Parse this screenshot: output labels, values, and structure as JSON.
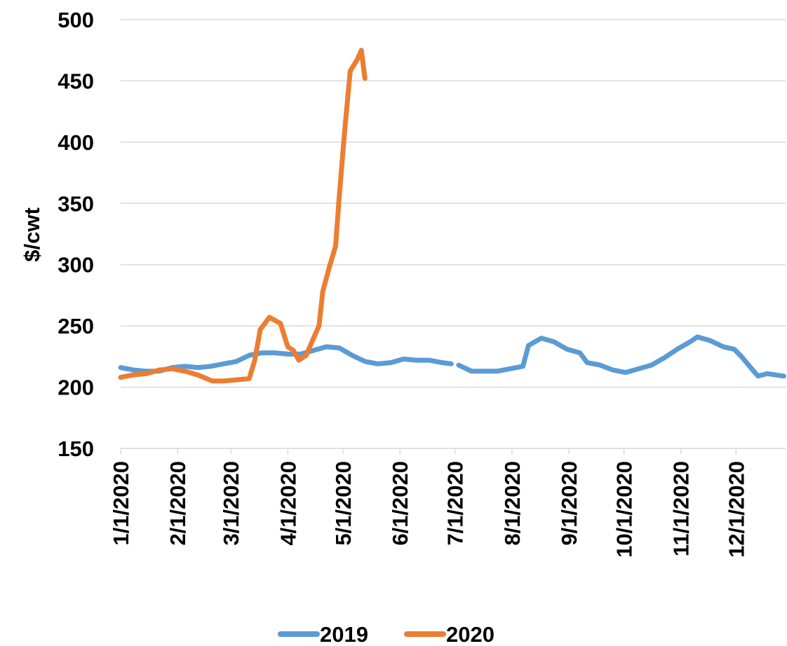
{
  "chart_data": {
    "type": "line",
    "y_label": "$/cwt",
    "xlim": [
      "1/1/2020",
      "12/28/2020"
    ],
    "xticks": [
      "1/1/2020",
      "2/1/2020",
      "3/1/2020",
      "4/1/2020",
      "5/1/2020",
      "6/1/2020",
      "7/1/2020",
      "8/1/2020",
      "9/1/2020",
      "10/1/2020",
      "11/1/2020",
      "12/1/2020"
    ],
    "ylim": [
      150,
      500
    ],
    "yticks": [
      150,
      200,
      250,
      300,
      350,
      400,
      450,
      500
    ],
    "grid": true,
    "legend": "bottom",
    "series": [
      {
        "name": "2019",
        "color": "#5b9bd5",
        "x": [
          "1/1/2020",
          "1/8/2020",
          "1/15/2020",
          "1/22/2020",
          "1/29/2020",
          "2/5/2020",
          "2/12/2020",
          "2/19/2020",
          "2/26/2020",
          "3/4/2020",
          "3/11/2020",
          "3/18/2020",
          "3/25/2020",
          "4/1/2020",
          "4/8/2020",
          "4/15/2020",
          "4/22/2020",
          "4/29/2020",
          "5/6/2020",
          "5/13/2020",
          "5/20/2020",
          "5/27/2020",
          "6/3/2020",
          "6/10/2020",
          "6/17/2020",
          "6/24/2020",
          "6/29/2020",
          "7/1/2020",
          "7/3/2020",
          "7/10/2020",
          "7/17/2020",
          "7/24/2020",
          "7/31/2020",
          "8/7/2020",
          "8/10/2020",
          "8/17/2020",
          "8/24/2020",
          "8/31/2020",
          "9/7/2020",
          "9/11/2020",
          "9/18/2020",
          "9/25/2020",
          "10/2/2020",
          "10/9/2020",
          "10/16/2020",
          "10/23/2020",
          "10/30/2020",
          "11/6/2020",
          "11/10/2020",
          "11/17/2020",
          "11/24/2020",
          "11/30/2020",
          "12/4/2020",
          "12/9/2020",
          "12/13/2020",
          "12/18/2020",
          "12/27/2020"
        ],
        "values": [
          216,
          214,
          213,
          213,
          216,
          217,
          216,
          217,
          219,
          221,
          226,
          228,
          228,
          227,
          227,
          230,
          233,
          232,
          226,
          221,
          219,
          220,
          223,
          222,
          222,
          220,
          219,
          null,
          218,
          213,
          213,
          213,
          215,
          217,
          234,
          240,
          237,
          231,
          228,
          220,
          218,
          214,
          212,
          215,
          218,
          224,
          231,
          237,
          241,
          238,
          233,
          231,
          225,
          216,
          209,
          211,
          209
        ]
      },
      {
        "name": "2020",
        "color": "#ed7d31",
        "x": [
          "1/1/2020",
          "1/8/2020",
          "1/15/2020",
          "1/22/2020",
          "1/29/2020",
          "2/5/2020",
          "2/12/2020",
          "2/20/2020",
          "2/26/2020",
          "3/4/2020",
          "3/11/2020",
          "3/14/2020",
          "3/17/2020",
          "3/22/2020",
          "3/28/2020",
          "4/1/2020",
          "4/4/2020",
          "4/7/2020",
          "4/11/2020",
          "4/15/2020",
          "4/18/2020",
          "4/20/2020",
          "4/24/2020",
          "4/27/2020",
          "4/29/2020",
          "5/2/2020",
          "5/5/2020",
          "5/9/2020",
          "5/11/2020",
          "5/13/2020"
        ],
        "values": [
          208,
          210,
          211,
          214,
          215,
          213,
          210,
          205,
          205,
          206,
          207,
          222,
          247,
          257,
          252,
          233,
          230,
          222,
          226,
          240,
          250,
          278,
          300,
          315,
          355,
          410,
          458,
          468,
          475,
          452
        ]
      }
    ]
  }
}
